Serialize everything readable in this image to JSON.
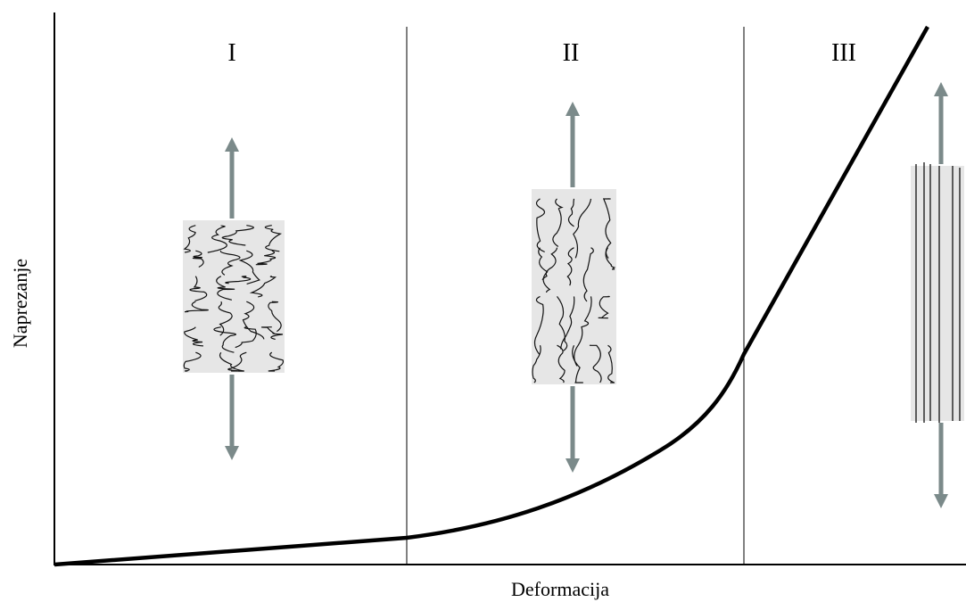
{
  "regions": [
    "I",
    "II",
    "III"
  ],
  "axes": {
    "y_label": "Naprezanje",
    "x_label": "Deformacija"
  }
}
